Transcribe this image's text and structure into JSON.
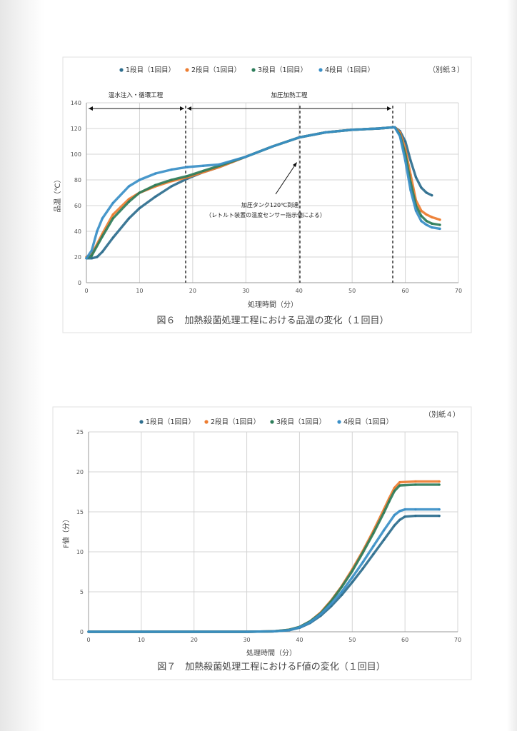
{
  "colors": {
    "series1": "#2e6e8e",
    "series2": "#ed7d31",
    "series3": "#2e7d5b",
    "series4": "#3a8fc7",
    "grid": "#d4d4d4",
    "axis": "#999999"
  },
  "chart_data": [
    {
      "type": "scatter",
      "title": "図６　加熱殺菌処理工程における品温の変化（１回目）",
      "sheet_label": "（別紙３）",
      "xlabel": "処理時間（分）",
      "ylabel": "品温（℃）",
      "xlim": [
        0,
        70
      ],
      "ylim": [
        0,
        140
      ],
      "xticks": [
        0,
        10,
        20,
        30,
        40,
        50,
        60,
        70
      ],
      "yticks": [
        0,
        20,
        40,
        60,
        80,
        100,
        120,
        140
      ],
      "grid": true,
      "legend_position": "top",
      "phase_labels": [
        "温水注入・循環工程",
        "加圧加熱工程"
      ],
      "annotation_line1": "加圧タンク120℃到達",
      "annotation_line2": "（レトルト装置の温度センサー指示値による）",
      "series": [
        {
          "name": "1段目（1回目）",
          "x": [
            0,
            1,
            2,
            3,
            5,
            8,
            10,
            13,
            16,
            19,
            22,
            25,
            30,
            35,
            40,
            45,
            50,
            55,
            58,
            59,
            60,
            61,
            62,
            63,
            64,
            65
          ],
          "y": [
            19,
            19,
            20,
            24,
            35,
            50,
            58,
            67,
            75,
            81,
            86,
            90,
            98,
            106,
            113,
            117,
            119,
            120,
            121,
            118,
            110,
            95,
            82,
            74,
            70,
            68
          ]
        },
        {
          "name": "2段目（1回目）",
          "x": [
            0,
            1,
            3,
            5,
            8,
            10,
            13,
            16,
            19,
            22,
            25,
            30,
            35,
            40,
            45,
            50,
            55,
            58,
            59,
            60,
            61,
            62,
            63,
            64,
            65,
            66.5
          ],
          "y": [
            20,
            22,
            38,
            53,
            65,
            70,
            75,
            79,
            82,
            86,
            90,
            98,
            106,
            113,
            117,
            119,
            120,
            121,
            117,
            104,
            84,
            64,
            56,
            53,
            51,
            49
          ]
        },
        {
          "name": "3段目（1回目）",
          "x": [
            0,
            1,
            3,
            5,
            8,
            10,
            13,
            16,
            19,
            22,
            25,
            30,
            35,
            40,
            45,
            50,
            55,
            58,
            59,
            60,
            61,
            62,
            63,
            64,
            65,
            66.5
          ],
          "y": [
            19,
            21,
            36,
            50,
            63,
            70,
            76,
            80,
            83,
            87,
            91,
            98,
            106,
            113,
            117,
            119,
            120,
            121,
            115,
            100,
            78,
            60,
            52,
            48,
            46,
            45
          ]
        },
        {
          "name": "4段目（1回目）",
          "x": [
            0,
            1,
            2,
            3,
            5,
            8,
            10,
            13,
            16,
            19,
            22,
            25,
            30,
            35,
            40,
            45,
            50,
            55,
            58,
            59,
            60,
            61,
            62,
            63,
            64,
            65,
            66.5
          ],
          "y": [
            19,
            25,
            40,
            50,
            62,
            75,
            80,
            85,
            88,
            90,
            91,
            92,
            98,
            106,
            113,
            117,
            119,
            120,
            121,
            114,
            95,
            72,
            56,
            48,
            45,
            43,
            42
          ]
        }
      ]
    },
    {
      "type": "scatter",
      "title": "図７　加熱殺菌処理工程におけるF値の変化（１回目）",
      "sheet_label": "（別紙４）",
      "xlabel": "処理時間（分）",
      "ylabel": "F値（分）",
      "xlim": [
        0,
        70
      ],
      "ylim": [
        0,
        25
      ],
      "xticks": [
        0,
        10,
        20,
        30,
        40,
        50,
        60,
        70
      ],
      "yticks": [
        0,
        5,
        10,
        15,
        20,
        25
      ],
      "grid": true,
      "legend_position": "top",
      "series": [
        {
          "name": "1段目（1回目）",
          "x": [
            0,
            30,
            35,
            38,
            40,
            42,
            44,
            46,
            48,
            50,
            52,
            54,
            56,
            58,
            59,
            60,
            62,
            66.5
          ],
          "y": [
            0,
            0,
            0.05,
            0.2,
            0.5,
            1.1,
            2.0,
            3.2,
            4.6,
            6.2,
            7.9,
            9.7,
            11.5,
            13.3,
            14.0,
            14.4,
            14.5,
            14.5
          ]
        },
        {
          "name": "2段目（1回目）",
          "x": [
            0,
            30,
            35,
            38,
            40,
            42,
            44,
            46,
            48,
            50,
            52,
            54,
            56,
            57,
            58,
            59,
            62,
            66.5
          ],
          "y": [
            0,
            0,
            0.05,
            0.25,
            0.6,
            1.3,
            2.4,
            3.9,
            5.7,
            7.8,
            10.1,
            12.6,
            15.3,
            16.7,
            18.0,
            18.7,
            18.8,
            18.8
          ]
        },
        {
          "name": "3段目（1回目）",
          "x": [
            0,
            30,
            35,
            38,
            40,
            42,
            44,
            46,
            48,
            50,
            52,
            54,
            56,
            57,
            58,
            59,
            62,
            66.5
          ],
          "y": [
            0,
            0,
            0.05,
            0.25,
            0.6,
            1.3,
            2.3,
            3.8,
            5.6,
            7.6,
            9.9,
            12.3,
            14.9,
            16.3,
            17.6,
            18.3,
            18.4,
            18.4
          ]
        },
        {
          "name": "4段目（1回目）",
          "x": [
            0,
            30,
            35,
            38,
            40,
            42,
            44,
            46,
            48,
            50,
            52,
            54,
            56,
            58,
            59,
            60,
            62,
            66.5
          ],
          "y": [
            0,
            0,
            0.05,
            0.2,
            0.55,
            1.2,
            2.2,
            3.5,
            5.0,
            6.8,
            8.7,
            10.7,
            12.7,
            14.6,
            15.1,
            15.3,
            15.3,
            15.3
          ]
        }
      ]
    }
  ]
}
